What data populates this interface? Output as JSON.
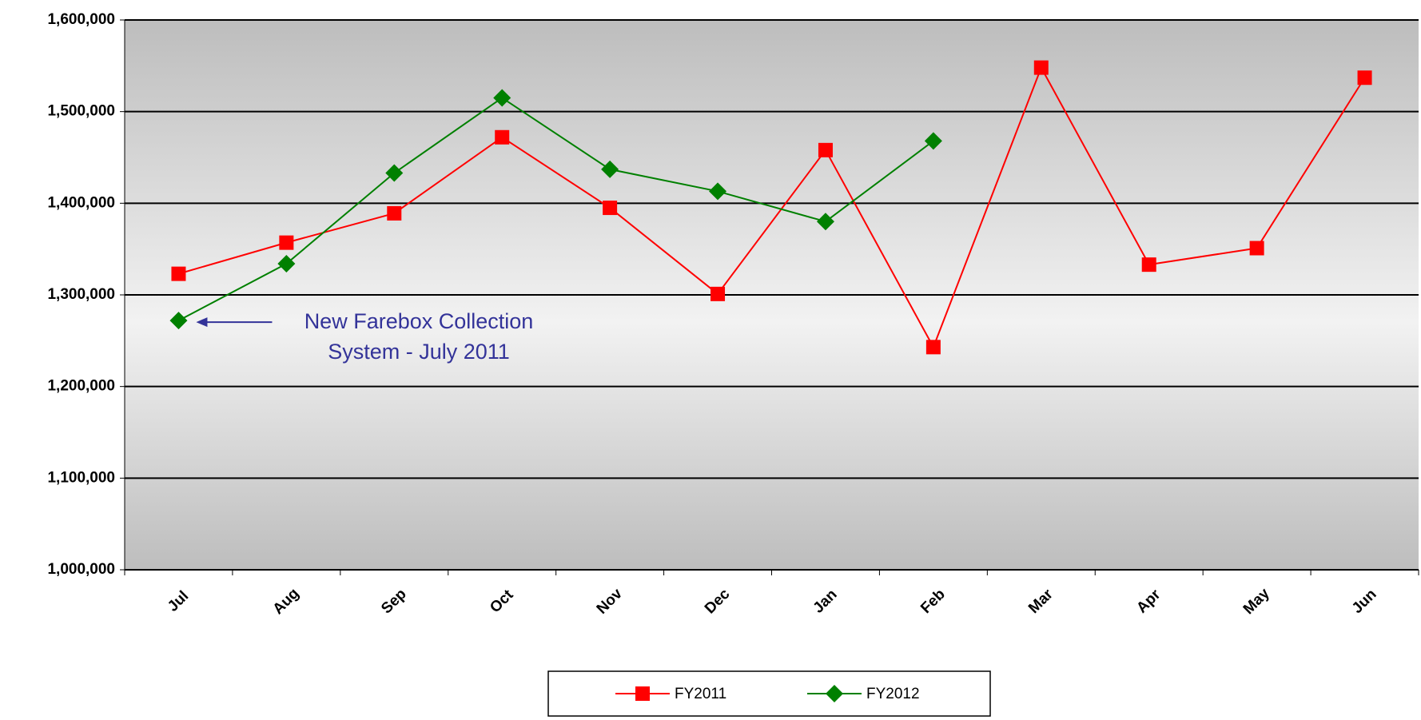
{
  "chart_data": {
    "type": "line",
    "categories": [
      "Jul",
      "Aug",
      "Sep",
      "Oct",
      "Nov",
      "Dec",
      "Jan",
      "Feb",
      "Mar",
      "Apr",
      "May",
      "Jun"
    ],
    "series": [
      {
        "name": "FY2011",
        "color": "#ff0000",
        "marker": "square",
        "values": [
          1323000,
          1357000,
          1389000,
          1472000,
          1395000,
          1301000,
          1458000,
          1243000,
          1548000,
          1333000,
          1351000,
          1537000
        ]
      },
      {
        "name": "FY2012",
        "color": "#008000",
        "marker": "diamond",
        "values": [
          1272000,
          1334000,
          1433000,
          1515000,
          1437000,
          1413000,
          1380000,
          1468000,
          null,
          null,
          null,
          null
        ]
      }
    ],
    "ylim": [
      1000000,
      1600000
    ],
    "yticks": [
      {
        "value": 1000000,
        "label": "1,000,000"
      },
      {
        "value": 1100000,
        "label": "1,100,000"
      },
      {
        "value": 1200000,
        "label": "1,200,000"
      },
      {
        "value": 1300000,
        "label": "1,300,000"
      },
      {
        "value": 1400000,
        "label": "1,400,000"
      },
      {
        "value": 1500000,
        "label": "1,500,000"
      },
      {
        "value": 1600000,
        "label": "1,600,000"
      }
    ],
    "grid": true,
    "legend": "bottom",
    "annotation": {
      "lines": [
        "New Farebox Collection",
        "System - July 2011"
      ],
      "category": 0,
      "series": 1
    }
  }
}
